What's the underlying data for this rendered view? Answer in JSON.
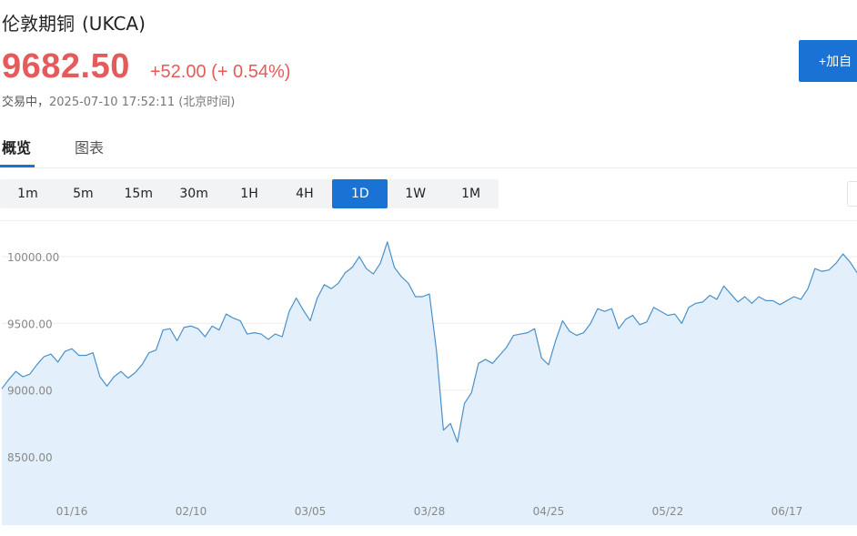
{
  "header": {
    "name": "伦敦期铜",
    "code": "(UKCA)",
    "price": "9682.50",
    "change": "+52.00 (+ 0.54%)",
    "status": "交易中，",
    "timestamp": "2025-07-10 17:52:11",
    "timezone": "(北京时间)",
    "price_color": "#e55a5a"
  },
  "add_button": {
    "label": "+加自"
  },
  "tabs": [
    {
      "label": "概览",
      "active": true
    },
    {
      "label": "图表",
      "active": false
    }
  ],
  "periods": [
    {
      "label": "1m",
      "active": false
    },
    {
      "label": "5m",
      "active": false
    },
    {
      "label": "15m",
      "active": false
    },
    {
      "label": "30m",
      "active": false
    },
    {
      "label": "1H",
      "active": false
    },
    {
      "label": "4H",
      "active": false
    },
    {
      "label": "1D",
      "active": true
    },
    {
      "label": "1W",
      "active": false
    },
    {
      "label": "1M",
      "active": false
    }
  ],
  "accent_color": "#1a73d4",
  "chart_data": {
    "type": "area",
    "ylim": [
      8200,
      10200
    ],
    "yticks": [
      {
        "value": 10000,
        "label": "10000.00"
      },
      {
        "value": 9500,
        "label": "9500.00"
      },
      {
        "value": 9000,
        "label": "9000.00"
      },
      {
        "value": 8500,
        "label": "8500.00"
      }
    ],
    "xticks": [
      {
        "index": 10,
        "label": "01/16"
      },
      {
        "index": 27,
        "label": "02/10"
      },
      {
        "index": 44,
        "label": "03/05"
      },
      {
        "index": 61,
        "label": "03/28"
      },
      {
        "index": 78,
        "label": "04/25"
      },
      {
        "index": 95,
        "label": "05/22"
      },
      {
        "index": 112,
        "label": "06/17"
      }
    ],
    "line_color": "#4a90c8",
    "fill_color": "#e3f0fc",
    "grid": true,
    "series": [
      {
        "values": [
          9010,
          9080,
          9140,
          9100,
          9120,
          9190,
          9250,
          9270,
          9210,
          9290,
          9310,
          9260,
          9260,
          9280,
          9100,
          9030,
          9100,
          9140,
          9090,
          9130,
          9190,
          9280,
          9300,
          9450,
          9460,
          9370,
          9470,
          9480,
          9460,
          9400,
          9480,
          9450,
          9570,
          9540,
          9520,
          9420,
          9430,
          9420,
          9380,
          9420,
          9400,
          9590,
          9690,
          9600,
          9520,
          9690,
          9790,
          9760,
          9800,
          9880,
          9920,
          10000,
          9910,
          9870,
          9950,
          10110,
          9920,
          9850,
          9800,
          9700,
          9700,
          9720,
          9300,
          8700,
          8750,
          8610,
          8900,
          8980,
          9200,
          9230,
          9200,
          9260,
          9320,
          9410,
          9420,
          9430,
          9460,
          9240,
          9190,
          9370,
          9520,
          9440,
          9410,
          9430,
          9500,
          9610,
          9590,
          9610,
          9460,
          9530,
          9560,
          9490,
          9510,
          9620,
          9590,
          9560,
          9570,
          9500,
          9620,
          9650,
          9660,
          9710,
          9680,
          9780,
          9720,
          9660,
          9700,
          9650,
          9700,
          9670,
          9670,
          9640,
          9670,
          9700,
          9680,
          9760,
          9910,
          9890,
          9900,
          9950,
          10020,
          9960,
          9880
        ]
      }
    ]
  }
}
